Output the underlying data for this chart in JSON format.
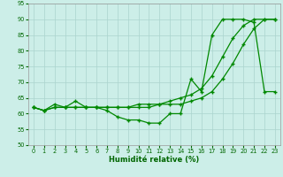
{
  "xlabel": "Humidité relative (%)",
  "bg_color": "#cceee8",
  "grid_color": "#aad4ce",
  "line_color": "#008800",
  "xlim_min": -0.5,
  "xlim_max": 23.5,
  "ylim_min": 50,
  "ylim_max": 95,
  "xticks": [
    0,
    1,
    2,
    3,
    4,
    5,
    6,
    7,
    8,
    9,
    10,
    11,
    12,
    13,
    14,
    15,
    16,
    17,
    18,
    19,
    20,
    21,
    22,
    23
  ],
  "yticks": [
    50,
    55,
    60,
    65,
    70,
    75,
    80,
    85,
    90,
    95
  ],
  "series1_x": [
    0,
    1,
    2,
    3,
    4,
    5,
    6,
    7,
    8,
    9,
    10,
    11,
    12,
    13,
    14,
    15,
    16,
    17,
    18,
    19,
    20,
    21,
    22,
    23
  ],
  "series1_y": [
    62,
    61,
    63,
    62,
    64,
    62,
    62,
    61,
    59,
    58,
    58,
    57,
    57,
    60,
    60,
    71,
    67,
    85,
    90,
    90,
    90,
    89,
    67,
    67
  ],
  "series2_x": [
    0,
    1,
    2,
    3,
    4,
    5,
    6,
    7,
    8,
    9,
    10,
    11,
    12,
    13,
    14,
    15,
    16,
    17,
    18,
    19,
    20,
    21,
    22,
    23
  ],
  "series2_y": [
    62,
    61,
    62,
    62,
    62,
    62,
    62,
    62,
    62,
    62,
    62,
    62,
    63,
    63,
    63,
    64,
    65,
    67,
    71,
    76,
    82,
    87,
    90,
    90
  ],
  "series3_x": [
    0,
    1,
    2,
    3,
    4,
    5,
    6,
    7,
    8,
    9,
    10,
    11,
    12,
    13,
    14,
    15,
    16,
    17,
    18,
    19,
    20,
    21,
    22,
    23
  ],
  "series3_y": [
    62,
    61,
    62,
    62,
    62,
    62,
    62,
    62,
    62,
    62,
    63,
    63,
    63,
    64,
    65,
    66,
    68,
    72,
    78,
    84,
    88,
    90,
    90,
    90
  ]
}
